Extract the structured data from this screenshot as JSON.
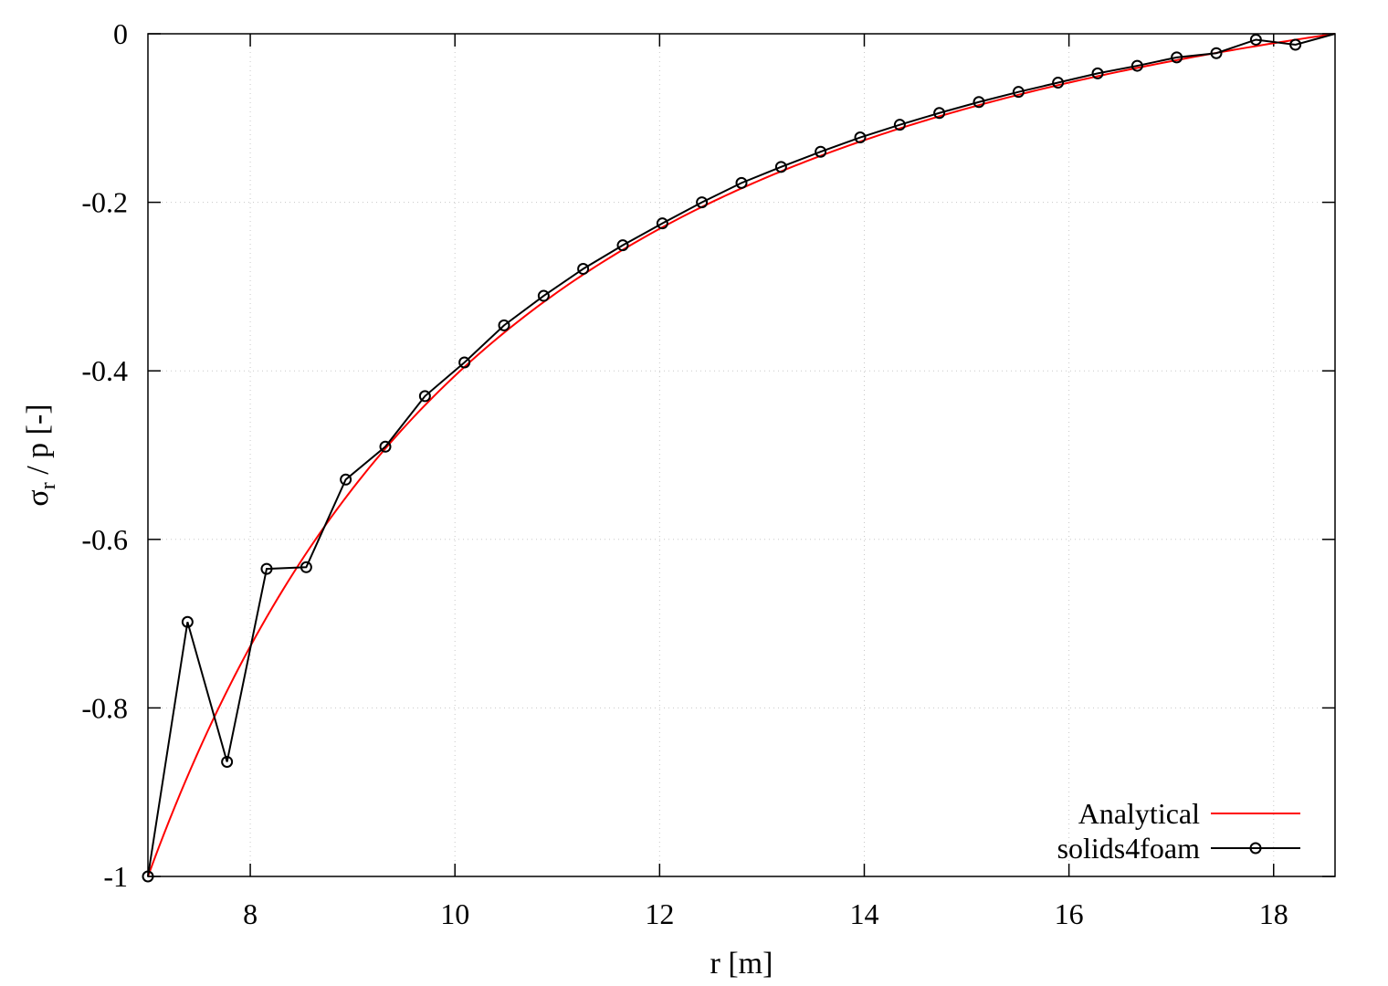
{
  "chart_data": {
    "type": "line",
    "title": "",
    "xlabel": "r [m]",
    "ylabel": {
      "base": "σ",
      "sub": "r",
      "rest": " / p [-]"
    },
    "xlim": [
      7,
      18.6
    ],
    "ylim": [
      -1,
      0
    ],
    "xticks": [
      8,
      10,
      12,
      14,
      16,
      18
    ],
    "xtick_labels": [
      "8",
      "10",
      "12",
      "14",
      "16",
      "18"
    ],
    "yticks": [
      0,
      -0.2,
      -0.4,
      -0.6,
      -0.8,
      -1
    ],
    "ytick_labels": [
      "0",
      "-0.2",
      "-0.4",
      "-0.6",
      "-0.8",
      "-1"
    ],
    "grid": true,
    "legend_position": "bottom-right",
    "series": [
      {
        "name": "Analytical",
        "color": "#ff0000",
        "marker": "none",
        "analytic": {
          "a": 7,
          "b": 18.6
        },
        "x": [],
        "y": []
      },
      {
        "name": "solids4foam",
        "color": "#000000",
        "marker": "open-circle",
        "x": [
          7.0,
          7.387,
          7.773,
          8.16,
          8.547,
          8.933,
          9.32,
          9.707,
          10.093,
          10.48,
          10.867,
          11.253,
          11.64,
          12.027,
          12.413,
          12.8,
          13.187,
          13.573,
          13.96,
          14.347,
          14.733,
          15.12,
          15.507,
          15.893,
          16.28,
          16.667,
          17.053,
          17.44,
          17.827,
          18.213
        ],
        "y": [
          -1.0,
          -0.698,
          -0.864,
          -0.635,
          -0.633,
          -0.529,
          -0.49,
          -0.43,
          -0.39,
          -0.346,
          -0.311,
          -0.279,
          -0.251,
          -0.225,
          -0.2,
          -0.177,
          -0.158,
          -0.14,
          -0.123,
          -0.108,
          -0.094,
          -0.081,
          -0.069,
          -0.058,
          -0.047,
          -0.038,
          -0.028,
          -0.023,
          -0.007,
          -0.013
        ]
      }
    ]
  }
}
